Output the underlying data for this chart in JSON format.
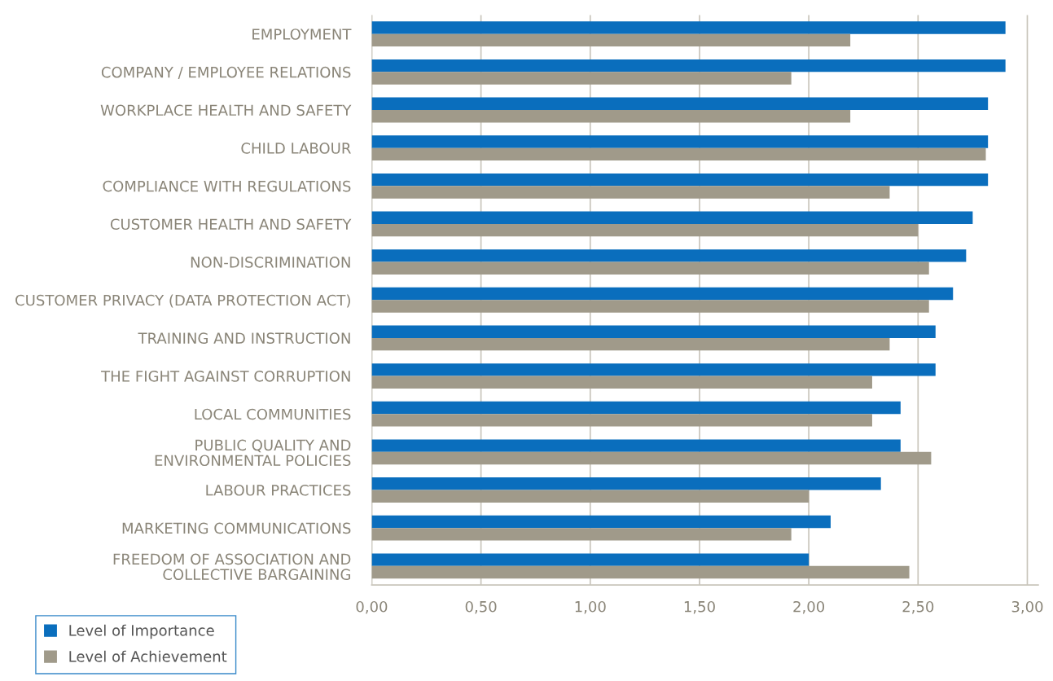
{
  "chart_data": {
    "type": "bar",
    "orientation": "horizontal",
    "categories": [
      "EMPLOYMENT",
      "COMPANY / EMPLOYEE RELATIONS",
      "WORKPLACE HEALTH AND SAFETY",
      "CHILD LABOUR",
      "COMPLIANCE WITH REGULATIONS",
      "CUSTOMER HEALTH AND SAFETY",
      "NON-DISCRIMINATION",
      "CUSTOMER PRIVACY (DATA PROTECTION ACT)",
      "TRAINING AND INSTRUCTION",
      "THE FIGHT AGAINST CORRUPTION",
      "LOCAL COMMUNITIES",
      "PUBLIC QUALITY AND\nENVIRONMENTAL POLICIES",
      "LABOUR PRACTICES",
      "MARKETING COMMUNICATIONS",
      "FREEDOM OF ASSOCIATION AND\nCOLLECTIVE BARGAINING"
    ],
    "series": [
      {
        "name": "Level of Importance",
        "color": "#0a6ebd",
        "values": [
          2.9,
          2.9,
          2.82,
          2.82,
          2.82,
          2.75,
          2.72,
          2.66,
          2.58,
          2.58,
          2.42,
          2.42,
          2.33,
          2.1,
          2.0
        ]
      },
      {
        "name": "Level of Achievement",
        "color": "#a09a8a",
        "values": [
          2.19,
          1.92,
          2.19,
          2.81,
          2.37,
          2.5,
          2.55,
          2.55,
          2.37,
          2.29,
          2.29,
          2.56,
          2.0,
          1.92,
          2.46
        ]
      }
    ],
    "xlim": [
      0,
      3.05
    ],
    "xticks": [
      {
        "value": 0,
        "label": "0,00"
      },
      {
        "value": 0.5,
        "label": "0,50"
      },
      {
        "value": 1,
        "label": "1,00"
      },
      {
        "value": 1.5,
        "label": "1,50"
      },
      {
        "value": 2,
        "label": "2,00"
      },
      {
        "value": 2.5,
        "label": "2,50"
      },
      {
        "value": 3,
        "label": "3,00"
      }
    ],
    "grid": "x",
    "legend": "bottom left"
  }
}
